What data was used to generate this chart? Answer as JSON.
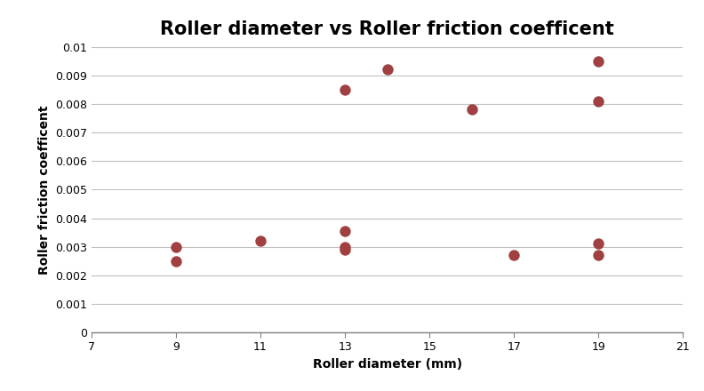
{
  "title": "Roller diameter vs Roller friction coefficent",
  "xlabel": "Roller diameter (mm)",
  "ylabel": "Roller friction coefficent",
  "x": [
    9,
    9,
    11,
    13,
    13,
    13,
    13,
    14,
    16,
    17,
    19,
    19,
    19,
    19
  ],
  "y": [
    0.003,
    0.0025,
    0.0032,
    0.00355,
    0.003,
    0.0029,
    0.0085,
    0.0092,
    0.0078,
    0.0027,
    0.0095,
    0.0081,
    0.0031,
    0.0027
  ],
  "marker_color": "#a04040",
  "marker_size": 80,
  "xlim": [
    7,
    21
  ],
  "ylim": [
    0,
    0.01
  ],
  "xticks": [
    7,
    9,
    11,
    13,
    15,
    17,
    19,
    21
  ],
  "ytick_vals": [
    0,
    0.001,
    0.002,
    0.003,
    0.004,
    0.005,
    0.006,
    0.007,
    0.008,
    0.009,
    0.01
  ],
  "ytick_labels": [
    "0",
    "0.001",
    "0.002",
    "0.003",
    "0.004",
    "0.005",
    "0.006",
    "0.007",
    "0.008",
    "0.009",
    "0.01"
  ],
  "background_color": "#ffffff",
  "grid_color": "#c0c0c0",
  "axis_color": "#808080",
  "title_fontsize": 15,
  "label_fontsize": 10,
  "tick_fontsize": 9,
  "figsize": [
    7.92,
    4.4
  ],
  "dpi": 100
}
